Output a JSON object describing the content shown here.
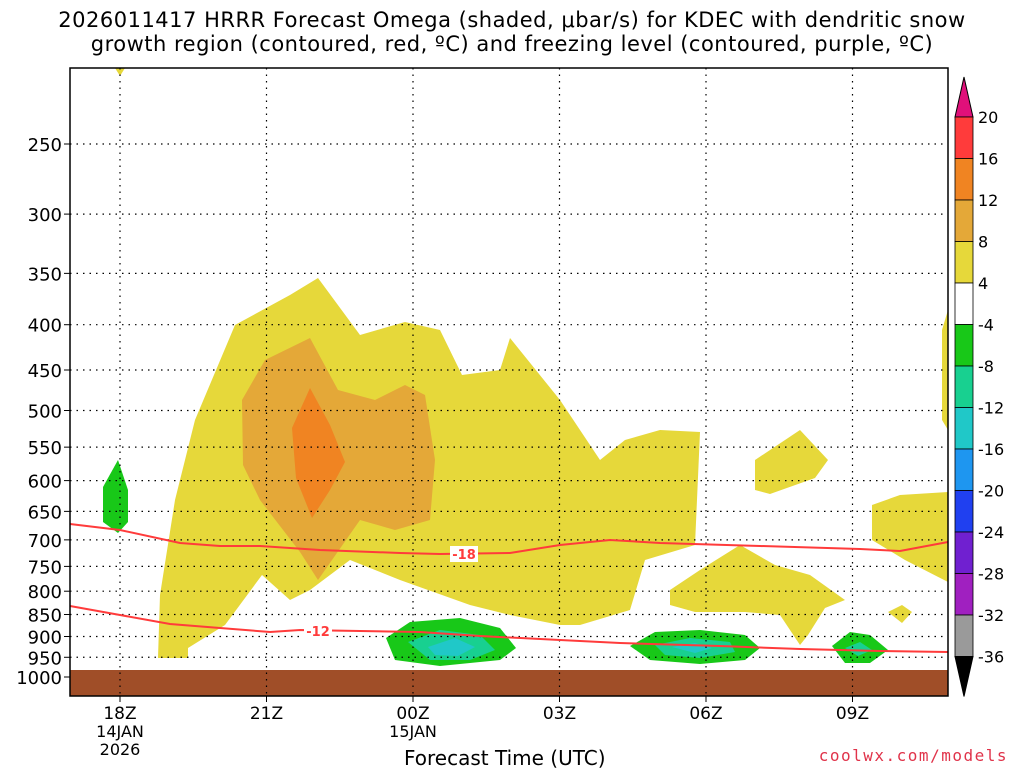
{
  "title": {
    "line1": "2026011417 HRRR Forecast Omega (shaded, μbar/s) for KDEC with dendritic snow",
    "line2": "growth region (contoured, red, ºC) and freezing level (contoured, purple, ºC)"
  },
  "credit": "coolwx.com/models",
  "chart_data": {
    "type": "heatmap",
    "xlabel": "Forecast Time (UTC)",
    "x_ticks": [
      {
        "label": "18Z",
        "sub": [
          "14JAN",
          "2026"
        ]
      },
      {
        "label": "21Z",
        "sub": []
      },
      {
        "label": "00Z",
        "sub": [
          "15JAN"
        ]
      },
      {
        "label": "03Z",
        "sub": []
      },
      {
        "label": "06Z",
        "sub": []
      },
      {
        "label": "09Z",
        "sub": []
      }
    ],
    "y_ticks": [
      "250",
      "300",
      "350",
      "400",
      "450",
      "500",
      "550",
      "600",
      "650",
      "700",
      "750",
      "800",
      "850",
      "900",
      "950",
      "1000"
    ],
    "y_scale": "pressure (hPa), log, decreasing upward",
    "colorbar": {
      "labels": [
        "20",
        "16",
        "12",
        "8",
        "4",
        "-4",
        "-8",
        "-12",
        "-16",
        "-20",
        "-24",
        "-28",
        "-32",
        "-36"
      ],
      "colors": [
        "#ff3b3b",
        "#f08422",
        "#e4a838",
        "#e6d83a",
        "#ffffff",
        "#18c818",
        "#18d090",
        "#20c8c8",
        "#1e96f0",
        "#2040f0",
        "#7020d0",
        "#a020c0",
        "#9a9a9a"
      ],
      "top_color": "#e0107a",
      "bottom_color": "#000000"
    },
    "contours": [
      {
        "value": "-18",
        "color": "#ff3b3b"
      },
      {
        "value": "-12",
        "color": "#ff3b3b"
      }
    ],
    "ground_color": "#a04e28"
  }
}
